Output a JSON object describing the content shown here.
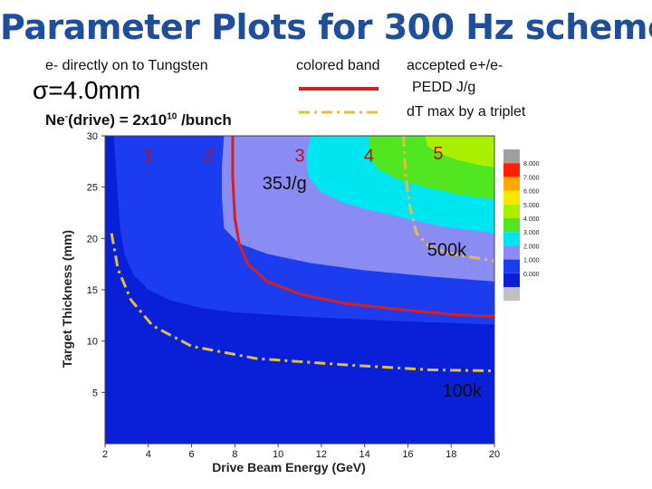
{
  "title": "Parameter Plots for 300 Hz scheme",
  "header": {
    "source_text": "e- directly on to Tungsten",
    "sigma_text": "σ=4.0mm",
    "drive_prefix": "Ne",
    "drive_sup_minus": "-",
    "drive_mid": "(drive) = 2x10",
    "drive_exp": "10",
    "drive_suffix": " /bunch"
  },
  "legend": {
    "colored_band_label": "colored band",
    "accepted_label": "accepted e+/e-",
    "pedd_label": "PEDD J/g",
    "dt_label": "dT max by a triplet",
    "solid_color": "#d42020",
    "dashed_color": "#e0c040"
  },
  "colors": {
    "title": "#1f4e9a",
    "band_0": "#0a1fd8",
    "band_1": "#1c3cf0",
    "band_2": "#8a8cf4",
    "band_3": "#00e6f0",
    "band_4": "#50e620",
    "band_5": "#a8f000",
    "band_6": "#f8e800",
    "band_7": "#ffa800",
    "band_8": "#ff2000",
    "band_under": "#c0c0c0",
    "band_over": "#a0a0a0"
  },
  "chart_data": {
    "type": "heatmap",
    "xlabel": "Drive Beam Energy (GeV)",
    "ylabel": "Target Thickness (mm)",
    "xlim": [
      2,
      20
    ],
    "ylim": [
      0,
      30
    ],
    "x_ticks": [
      "2",
      "4",
      "6",
      "8",
      "10",
      "12",
      "14",
      "16",
      "18",
      "20"
    ],
    "x_tick_values": [
      2,
      4,
      6,
      8,
      10,
      12,
      14,
      16,
      18,
      20
    ],
    "y_ticks": [
      "5",
      "10",
      "15",
      "20",
      "25",
      "30"
    ],
    "y_tick_values": [
      5,
      10,
      15,
      20,
      25,
      30
    ],
    "colorbar_levels": [
      "8.000",
      "7.000",
      "6.000",
      "5.000",
      "4.000",
      "3.000",
      "2.000",
      "1.000",
      "0.000"
    ],
    "band_labels": [
      {
        "text": "1",
        "x": 4.0,
        "y": 27.5,
        "color": "#c01010"
      },
      {
        "text": "2",
        "x": 6.8,
        "y": 27.5,
        "color": "#c01010"
      },
      {
        "text": "3",
        "x": 11.0,
        "y": 27.5,
        "color": "#c01010"
      },
      {
        "text": "4",
        "x": 14.2,
        "y": 27.5,
        "color": "#c01010"
      },
      {
        "text": "5",
        "x": 17.4,
        "y": 27.7,
        "color": "#c01010"
      }
    ],
    "annotations": [
      {
        "text": "35J/g",
        "x": 10.3,
        "y": 24.8
      },
      {
        "text": "500k",
        "x": 17.8,
        "y": 18.3
      },
      {
        "text": "100k",
        "x": 18.5,
        "y": 4.6
      }
    ],
    "contour_boundaries": [
      {
        "name": "boundary_1_2",
        "points": [
          [
            2.4,
            30
          ],
          [
            2.5,
            27
          ],
          [
            2.6,
            24
          ],
          [
            2.7,
            21
          ],
          [
            2.9,
            18.5
          ],
          [
            3.3,
            16.5
          ],
          [
            4,
            15
          ],
          [
            5,
            14
          ],
          [
            6.5,
            13.2
          ],
          [
            8,
            12.8
          ],
          [
            11,
            12.4
          ],
          [
            15,
            12
          ],
          [
            20,
            11.6
          ]
        ]
      },
      {
        "name": "boundary_2_3",
        "points": [
          [
            7.5,
            30
          ],
          [
            7.4,
            27
          ],
          [
            7.4,
            24
          ],
          [
            7.5,
            21
          ],
          [
            8.2,
            19.5
          ],
          [
            9.5,
            18.5
          ],
          [
            11.5,
            17.6
          ],
          [
            14,
            16.9
          ],
          [
            17,
            16.3
          ],
          [
            20,
            15.8
          ]
        ]
      },
      {
        "name": "boundary_3_4",
        "points": [
          [
            11.5,
            30
          ],
          [
            11.3,
            28
          ],
          [
            11.4,
            26
          ],
          [
            12,
            24.5
          ],
          [
            13,
            23.5
          ],
          [
            14.2,
            22.8
          ],
          [
            15.8,
            22
          ],
          [
            17.5,
            21.2
          ],
          [
            20,
            20.5
          ]
        ]
      },
      {
        "name": "boundary_4_5",
        "points": [
          [
            14.2,
            30
          ],
          [
            14.2,
            28
          ],
          [
            14.6,
            26.8
          ],
          [
            15.5,
            25.8
          ],
          [
            16.8,
            25
          ],
          [
            18.3,
            24.3
          ],
          [
            20,
            23.8
          ]
        ]
      },
      {
        "name": "boundary_5_6",
        "points": [
          [
            16.8,
            30
          ],
          [
            16.9,
            29
          ],
          [
            17.4,
            28.3
          ],
          [
            18.2,
            27.7
          ],
          [
            19.2,
            27.2
          ],
          [
            20,
            26.9
          ]
        ]
      }
    ],
    "series": [
      {
        "name": "PEDD 35 J/g",
        "style": "solid",
        "points": [
          [
            7.9,
            30
          ],
          [
            7.9,
            26
          ],
          [
            8.0,
            22
          ],
          [
            8.2,
            19.5
          ],
          [
            8.6,
            17.5
          ],
          [
            9.5,
            15.8
          ],
          [
            11,
            14.6
          ],
          [
            13,
            13.7
          ],
          [
            15.5,
            13.1
          ],
          [
            18,
            12.6
          ],
          [
            20,
            12.4
          ]
        ]
      },
      {
        "name": "500k",
        "style": "dashed",
        "points": [
          [
            15.8,
            30
          ],
          [
            15.9,
            26
          ],
          [
            16.1,
            23
          ],
          [
            16.4,
            20.5
          ],
          [
            17,
            19.2
          ],
          [
            18,
            18.5
          ],
          [
            19.2,
            18.1
          ],
          [
            20,
            17.8
          ]
        ]
      },
      {
        "name": "100k",
        "style": "dashed",
        "points": [
          [
            2.3,
            20.5
          ],
          [
            2.6,
            17
          ],
          [
            3.2,
            14
          ],
          [
            4.2,
            11.5
          ],
          [
            6,
            9.5
          ],
          [
            9,
            8.3
          ],
          [
            13,
            7.7
          ],
          [
            17,
            7.2
          ],
          [
            20,
            7.1
          ]
        ]
      }
    ]
  }
}
